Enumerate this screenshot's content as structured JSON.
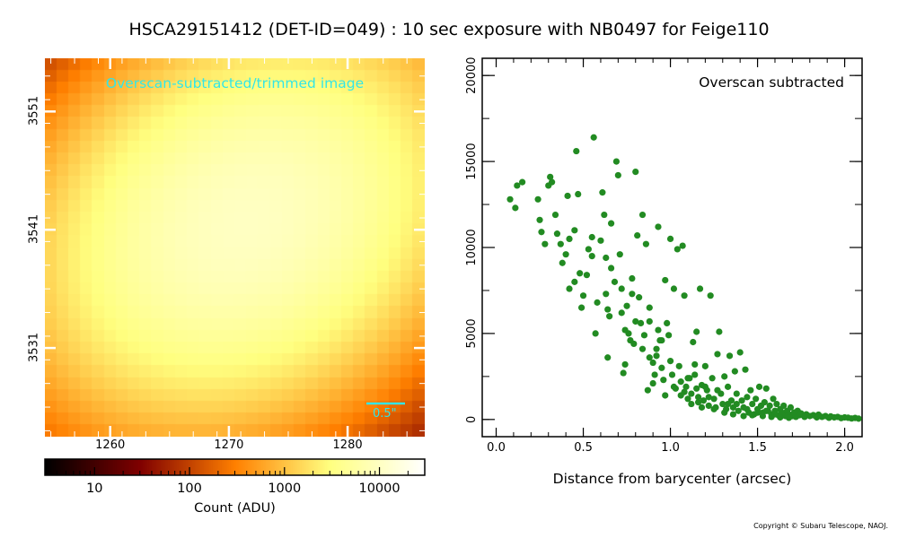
{
  "title": "HSCA29151412 (DET-ID=049) :  10 sec exposure with NB0497 for Feige110",
  "copyright": "Copyright © Subaru Telescope, NAOJ.",
  "colors": {
    "cyan": "#33e6e6",
    "scatter_green": "#228b22"
  },
  "chart_data": [
    {
      "type": "heatmap",
      "label": "Overscan-subtracted/trimmed image",
      "scale_bar_label": "0.5\"",
      "colormap": "afmhot",
      "x_ticks": [
        "1260",
        "1270",
        "1280"
      ],
      "y_ticks": [
        "3551",
        "3541",
        "3531"
      ],
      "x_tick_values": [
        1260,
        1270,
        1280
      ],
      "y_tick_values": [
        3551,
        3541,
        3531
      ],
      "xlim": [
        1254.5,
        1286.5
      ],
      "ylim": [
        3523.5,
        3555.5
      ],
      "center": [
        1271.5,
        3541.5
      ],
      "peak_log10": 4.0
    },
    {
      "type": "colorbar",
      "scale": "log",
      "range": [
        3,
        30000
      ],
      "tick_labels": [
        "10",
        "100",
        "1000",
        "10000"
      ],
      "tick_values": [
        10,
        100,
        1000,
        10000
      ],
      "label": "Count (ADU)"
    },
    {
      "type": "scatter",
      "label": "Overscan subtracted",
      "xlabel": "Distance from barycenter (arcsec)",
      "ylabel": "",
      "xlim": [
        -0.08,
        2.1
      ],
      "ylim": [
        -1000,
        21000
      ],
      "x_tick_labels": [
        "0.0",
        "0.5",
        "1.0",
        "1.5",
        "2.0"
      ],
      "x_tick_values": [
        0.0,
        0.5,
        1.0,
        1.5,
        2.0
      ],
      "y_tick_labels": [
        "0",
        "5000",
        "10000",
        "15000",
        "20000"
      ],
      "y_tick_values": [
        0,
        5000,
        10000,
        15000,
        20000
      ],
      "series": [
        {
          "points": [
            [
              0.08,
              12800
            ],
            [
              0.11,
              12300
            ],
            [
              0.12,
              13600
            ],
            [
              0.15,
              13800
            ],
            [
              0.24,
              12800
            ],
            [
              0.25,
              11600
            ],
            [
              0.26,
              10900
            ],
            [
              0.28,
              10200
            ],
            [
              0.3,
              13600
            ],
            [
              0.31,
              14100
            ],
            [
              0.32,
              13800
            ],
            [
              0.34,
              11900
            ],
            [
              0.37,
              10200
            ],
            [
              0.38,
              9100
            ],
            [
              0.4,
              9600
            ],
            [
              0.41,
              13000
            ],
            [
              0.42,
              10500
            ],
            [
              0.42,
              7600
            ],
            [
              0.45,
              8000
            ],
            [
              0.46,
              15600
            ],
            [
              0.47,
              13100
            ],
            [
              0.48,
              8500
            ],
            [
              0.49,
              6500
            ],
            [
              0.5,
              7200
            ],
            [
              0.52,
              8400
            ],
            [
              0.53,
              9900
            ],
            [
              0.55,
              10600
            ],
            [
              0.56,
              16400
            ],
            [
              0.57,
              5000
            ],
            [
              0.58,
              6800
            ],
            [
              0.6,
              10400
            ],
            [
              0.61,
              13200
            ],
            [
              0.62,
              11900
            ],
            [
              0.63,
              9400
            ],
            [
              0.63,
              7300
            ],
            [
              0.64,
              6400
            ],
            [
              0.64,
              3600
            ],
            [
              0.65,
              6000
            ],
            [
              0.66,
              11400
            ],
            [
              0.68,
              8000
            ],
            [
              0.69,
              15000
            ],
            [
              0.7,
              14200
            ],
            [
              0.71,
              9600
            ],
            [
              0.72,
              6200
            ],
            [
              0.73,
              2700
            ],
            [
              0.74,
              3200
            ],
            [
              0.74,
              5200
            ],
            [
              0.75,
              6600
            ],
            [
              0.76,
              5000
            ],
            [
              0.78,
              7300
            ],
            [
              0.78,
              8200
            ],
            [
              0.79,
              4400
            ],
            [
              0.8,
              14400
            ],
            [
              0.8,
              5700
            ],
            [
              0.81,
              10700
            ],
            [
              0.82,
              7100
            ],
            [
              0.84,
              11900
            ],
            [
              0.84,
              4100
            ],
            [
              0.85,
              4900
            ],
            [
              0.86,
              10200
            ],
            [
              0.87,
              1700
            ],
            [
              0.88,
              3600
            ],
            [
              0.88,
              6500
            ],
            [
              0.9,
              3300
            ],
            [
              0.91,
              2600
            ],
            [
              0.92,
              4100
            ],
            [
              0.93,
              5200
            ],
            [
              0.93,
              11200
            ],
            [
              0.94,
              4600
            ],
            [
              0.95,
              3000
            ],
            [
              0.96,
              2300
            ],
            [
              0.97,
              8100
            ],
            [
              0.97,
              1400
            ],
            [
              0.98,
              5600
            ],
            [
              0.99,
              4900
            ],
            [
              1.0,
              10500
            ],
            [
              1.0,
              3400
            ],
            [
              1.01,
              2600
            ],
            [
              1.02,
              7600
            ],
            [
              1.03,
              1800
            ],
            [
              1.04,
              9900
            ],
            [
              1.05,
              3100
            ],
            [
              1.06,
              1400
            ],
            [
              1.07,
              10100
            ],
            [
              1.08,
              7200
            ],
            [
              1.09,
              1900
            ],
            [
              1.1,
              1200
            ],
            [
              1.11,
              2400
            ],
            [
              1.12,
              1500
            ],
            [
              1.13,
              4500
            ],
            [
              1.14,
              2600
            ],
            [
              1.15,
              5100
            ],
            [
              1.16,
              1000
            ],
            [
              1.17,
              7600
            ],
            [
              1.18,
              2000
            ],
            [
              1.19,
              1100
            ],
            [
              1.2,
              3100
            ],
            [
              1.21,
              1700
            ],
            [
              1.22,
              800
            ],
            [
              1.23,
              7200
            ],
            [
              1.24,
              2400
            ],
            [
              1.25,
              1200
            ],
            [
              1.26,
              700
            ],
            [
              1.27,
              3800
            ],
            [
              1.28,
              5100
            ],
            [
              1.29,
              1500
            ],
            [
              1.3,
              900
            ],
            [
              1.31,
              2500
            ],
            [
              1.32,
              600
            ],
            [
              1.33,
              1900
            ],
            [
              1.34,
              3700
            ],
            [
              1.35,
              1100
            ],
            [
              1.36,
              700
            ],
            [
              1.37,
              2800
            ],
            [
              1.38,
              1500
            ],
            [
              1.39,
              500
            ],
            [
              1.4,
              3900
            ],
            [
              1.41,
              1100
            ],
            [
              1.42,
              700
            ],
            [
              1.43,
              2900
            ],
            [
              1.44,
              1300
            ],
            [
              1.45,
              400
            ],
            [
              1.46,
              1700
            ],
            [
              1.47,
              900
            ],
            [
              1.48,
              300
            ],
            [
              1.49,
              1200
            ],
            [
              1.5,
              600
            ],
            [
              1.51,
              1900
            ],
            [
              1.52,
              800
            ],
            [
              1.53,
              400
            ],
            [
              1.54,
              1000
            ],
            [
              1.55,
              1800
            ],
            [
              1.56,
              500
            ],
            [
              1.57,
              800
            ],
            [
              1.58,
              300
            ],
            [
              1.59,
              1200
            ],
            [
              1.6,
              500
            ],
            [
              1.61,
              900
            ],
            [
              1.62,
              250
            ],
            [
              1.63,
              600
            ],
            [
              1.64,
              400
            ],
            [
              1.65,
              800
            ],
            [
              1.66,
              200
            ],
            [
              1.67,
              500
            ],
            [
              1.68,
              300
            ],
            [
              1.69,
              700
            ],
            [
              1.7,
              200
            ],
            [
              1.71,
              400
            ],
            [
              1.72,
              150
            ],
            [
              1.73,
              500
            ],
            [
              1.74,
              250
            ],
            [
              1.75,
              350
            ],
            [
              1.77,
              150
            ],
            [
              1.78,
              300
            ],
            [
              1.8,
              200
            ],
            [
              1.82,
              250
            ],
            [
              1.84,
              120
            ],
            [
              1.85,
              280
            ],
            [
              1.87,
              150
            ],
            [
              1.89,
              200
            ],
            [
              1.91,
              100
            ],
            [
              1.92,
              180
            ],
            [
              1.94,
              120
            ],
            [
              1.96,
              150
            ],
            [
              1.98,
              80
            ],
            [
              2.0,
              120
            ],
            [
              2.02,
              100
            ],
            [
              2.04,
              60
            ],
            [
              2.06,
              90
            ],
            [
              2.08,
              50
            ],
            [
              1.02,
              1900
            ],
            [
              1.1,
              2400
            ],
            [
              1.15,
              1800
            ],
            [
              1.22,
              1300
            ],
            [
              1.27,
              1700
            ],
            [
              1.33,
              900
            ],
            [
              1.38,
              900
            ],
            [
              1.44,
              600
            ],
            [
              1.5,
              400
            ],
            [
              1.55,
              500
            ],
            [
              1.6,
              300
            ],
            [
              1.12,
              900
            ],
            [
              1.18,
              700
            ],
            [
              1.25,
              600
            ],
            [
              1.31,
              400
            ],
            [
              1.36,
              300
            ],
            [
              1.42,
              200
            ],
            [
              1.47,
              250
            ],
            [
              1.53,
              200
            ],
            [
              1.58,
              150
            ],
            [
              1.63,
              120
            ],
            [
              1.68,
              100
            ],
            [
              0.88,
              5700
            ],
            [
              0.92,
              3700
            ],
            [
              0.95,
              4600
            ],
            [
              1.06,
              2200
            ],
            [
              1.14,
              3200
            ],
            [
              1.2,
              1900
            ],
            [
              0.55,
              9500
            ],
            [
              0.45,
              11000
            ],
            [
              0.35,
              10800
            ],
            [
              0.66,
              8800
            ],
            [
              0.72,
              7600
            ],
            [
              0.83,
              5600
            ],
            [
              0.77,
              4600
            ],
            [
              0.9,
              2100
            ],
            [
              1.08,
              1600
            ],
            [
              1.16,
              1300
            ]
          ]
        }
      ]
    }
  ]
}
